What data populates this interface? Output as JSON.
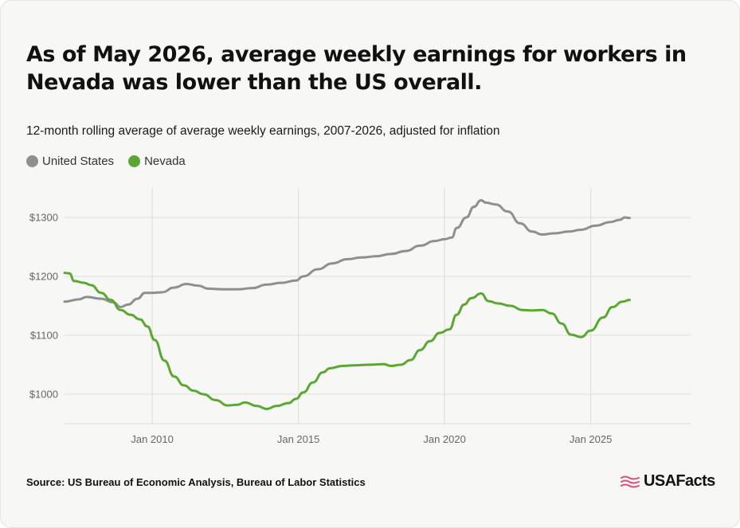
{
  "title": "As of May 2026, average weekly earnings for workers in Nevada was lower than the US overall.",
  "subtitle": "12-month rolling average of average weekly earnings, 2007-2026, adjusted for inflation",
  "source": "Source: US Bureau of Economic Analysis, Bureau of Labor Statistics",
  "logo_text": "USAFacts",
  "colors": {
    "us": "#8f8f8f",
    "nevada": "#5aa832",
    "grid": "#dcdcd8",
    "axis_text": "#666666",
    "logo_flag": "#d8527a"
  },
  "chart_data": {
    "type": "line",
    "title": "As of May 2026, average weekly earnings for workers in Nevada was lower than the US overall.",
    "subtitle": "12-month rolling average of average weekly earnings, 2007-2026, adjusted for inflation",
    "xlabel": "",
    "ylabel": "",
    "x_type": "date",
    "xlim": [
      "2007-01",
      "2028-06"
    ],
    "ylim": [
      950,
      1350
    ],
    "x_ticks": [
      {
        "value": "2010-01",
        "label": "Jan 2010"
      },
      {
        "value": "2015-01",
        "label": "Jan 2015"
      },
      {
        "value": "2020-01",
        "label": "Jan 2020"
      },
      {
        "value": "2025-01",
        "label": "Jan 2025"
      }
    ],
    "y_ticks": [
      {
        "value": 1000,
        "label": "$1000"
      },
      {
        "value": 1100,
        "label": "$1100"
      },
      {
        "value": 1200,
        "label": "$1200"
      },
      {
        "value": 1300,
        "label": "$1300"
      }
    ],
    "grid": true,
    "legend_position": "top-left",
    "series": [
      {
        "name": "United States",
        "color_key": "us",
        "points": [
          [
            "2007-01",
            1157
          ],
          [
            "2007-07",
            1161
          ],
          [
            "2007-10",
            1165
          ],
          [
            "2008-04",
            1162
          ],
          [
            "2008-09",
            1156
          ],
          [
            "2008-12",
            1148
          ],
          [
            "2009-03",
            1152
          ],
          [
            "2009-07",
            1162
          ],
          [
            "2009-10",
            1172
          ],
          [
            "2010-01",
            1172
          ],
          [
            "2010-05",
            1173
          ],
          [
            "2010-10",
            1181
          ],
          [
            "2011-03",
            1187
          ],
          [
            "2011-08",
            1184
          ],
          [
            "2011-12",
            1179
          ],
          [
            "2012-06",
            1178
          ],
          [
            "2012-12",
            1178
          ],
          [
            "2013-06",
            1180
          ],
          [
            "2013-12",
            1186
          ],
          [
            "2014-06",
            1189
          ],
          [
            "2014-12",
            1193
          ],
          [
            "2015-03",
            1200
          ],
          [
            "2015-09",
            1212
          ],
          [
            "2016-03",
            1222
          ],
          [
            "2016-09",
            1229
          ],
          [
            "2017-03",
            1232
          ],
          [
            "2017-09",
            1234
          ],
          [
            "2018-03",
            1238
          ],
          [
            "2018-09",
            1243
          ],
          [
            "2019-03",
            1252
          ],
          [
            "2019-09",
            1260
          ],
          [
            "2020-01",
            1263
          ],
          [
            "2020-04",
            1266
          ],
          [
            "2020-06",
            1282
          ],
          [
            "2020-10",
            1300
          ],
          [
            "2021-01",
            1318
          ],
          [
            "2021-04",
            1329
          ],
          [
            "2021-06",
            1325
          ],
          [
            "2021-10",
            1322
          ],
          [
            "2022-03",
            1310
          ],
          [
            "2022-08",
            1290
          ],
          [
            "2023-01",
            1276
          ],
          [
            "2023-05",
            1271
          ],
          [
            "2023-10",
            1273
          ],
          [
            "2024-04",
            1276
          ],
          [
            "2024-09",
            1279
          ],
          [
            "2025-03",
            1286
          ],
          [
            "2025-09",
            1292
          ],
          [
            "2026-01",
            1296
          ],
          [
            "2026-03",
            1300
          ],
          [
            "2026-05",
            1299
          ]
        ]
      },
      {
        "name": "Nevada",
        "color_key": "nevada",
        "points": [
          [
            "2007-01",
            1206
          ],
          [
            "2007-03",
            1205
          ],
          [
            "2007-05",
            1192
          ],
          [
            "2007-09",
            1189
          ],
          [
            "2007-12",
            1185
          ],
          [
            "2008-04",
            1172
          ],
          [
            "2008-08",
            1160
          ],
          [
            "2008-12",
            1143
          ],
          [
            "2009-04",
            1135
          ],
          [
            "2009-08",
            1127
          ],
          [
            "2009-11",
            1115
          ],
          [
            "2010-02",
            1092
          ],
          [
            "2010-06",
            1057
          ],
          [
            "2010-10",
            1030
          ],
          [
            "2011-02",
            1015
          ],
          [
            "2011-06",
            1006
          ],
          [
            "2011-10",
            1000
          ],
          [
            "2012-03",
            990
          ],
          [
            "2012-08",
            981
          ],
          [
            "2012-12",
            982
          ],
          [
            "2013-03",
            986
          ],
          [
            "2013-08",
            980
          ],
          [
            "2013-12",
            975
          ],
          [
            "2014-04",
            980
          ],
          [
            "2014-09",
            985
          ],
          [
            "2014-12",
            992
          ],
          [
            "2015-03",
            1003
          ],
          [
            "2015-07",
            1020
          ],
          [
            "2015-11",
            1037
          ],
          [
            "2016-02",
            1044
          ],
          [
            "2016-07",
            1048
          ],
          [
            "2016-12",
            1049
          ],
          [
            "2017-06",
            1050
          ],
          [
            "2017-12",
            1051
          ],
          [
            "2018-03",
            1048
          ],
          [
            "2018-07",
            1050
          ],
          [
            "2018-11",
            1058
          ],
          [
            "2019-03",
            1075
          ],
          [
            "2019-07",
            1090
          ],
          [
            "2019-11",
            1104
          ],
          [
            "2020-03",
            1110
          ],
          [
            "2020-06",
            1135
          ],
          [
            "2020-09",
            1152
          ],
          [
            "2020-12",
            1163
          ],
          [
            "2021-04",
            1171
          ],
          [
            "2021-07",
            1158
          ],
          [
            "2021-11",
            1154
          ],
          [
            "2022-04",
            1150
          ],
          [
            "2022-09",
            1143
          ],
          [
            "2023-01",
            1142
          ],
          [
            "2023-05",
            1143
          ],
          [
            "2023-09",
            1137
          ],
          [
            "2024-01",
            1120
          ],
          [
            "2024-05",
            1101
          ],
          [
            "2024-09",
            1097
          ],
          [
            "2025-01",
            1108
          ],
          [
            "2025-06",
            1130
          ],
          [
            "2025-10",
            1148
          ],
          [
            "2026-02",
            1157
          ],
          [
            "2026-05",
            1160
          ]
        ]
      }
    ]
  }
}
